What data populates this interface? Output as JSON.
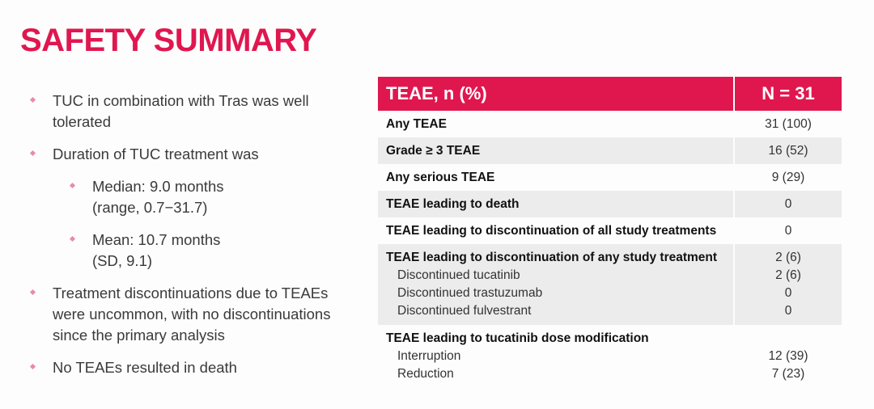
{
  "title": "SAFETY SUMMARY",
  "bullets": [
    {
      "text": "TUC in combination with Tras was well tolerated"
    },
    {
      "text": "Duration of TUC treatment was"
    },
    {
      "text": "Median: 9.0 months (range, 0.7−31.7)",
      "sub": true
    },
    {
      "text": "Mean: 10.7 months (SD, 9.1)",
      "sub": true
    },
    {
      "text": "Treatment discontinuations due to TEAEs were uncommon, with no discontinuations since the primary analysis"
    },
    {
      "text": "No TEAEs resulted in death"
    }
  ],
  "table": {
    "header": {
      "label": "TEAE, n (%)",
      "n": "N = 31"
    },
    "rows": [
      {
        "label": "Any TEAE",
        "value": "31 (100)"
      },
      {
        "label": "Grade ≥ 3 TEAE",
        "value": "16 (52)"
      },
      {
        "label": "Any serious TEAE",
        "value": "9 (29)"
      },
      {
        "label": "TEAE leading to death",
        "value": "0"
      },
      {
        "label": "TEAE leading to discontinuation of all study treatments",
        "value": "0"
      },
      {
        "label": "TEAE leading to discontinuation of any study treatment",
        "value": "2 (6)",
        "subs": [
          {
            "label": "Discontinued tucatinib",
            "value": "2 (6)"
          },
          {
            "label": "Discontinued trastuzumab",
            "value": "0"
          },
          {
            "label": "Discontinued fulvestrant",
            "value": "0"
          }
        ]
      },
      {
        "label": "TEAE leading to tucatinib dose modification",
        "value": "",
        "subs": [
          {
            "label": "Interruption",
            "value": "12 (39)"
          },
          {
            "label": "Reduction",
            "value": "7 (23)"
          }
        ]
      }
    ]
  },
  "colors": {
    "accent": "#e0174f",
    "bullet": "#e98aa8",
    "row_shade": "#ececec"
  }
}
